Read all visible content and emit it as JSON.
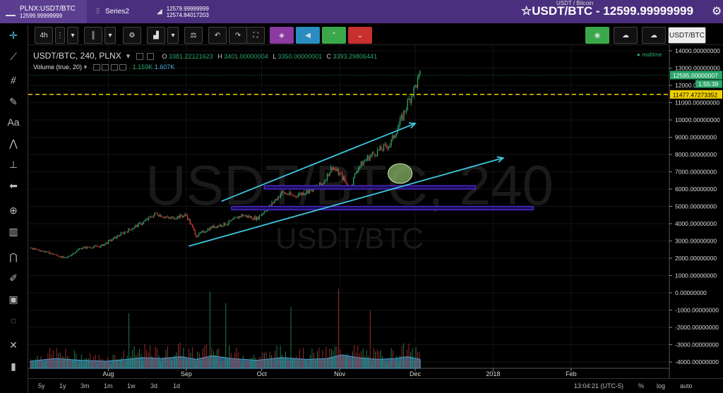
{
  "tabs": [
    {
      "label": "PLNX:USDT/BTC",
      "sub": "12599.99999999"
    },
    {
      "label": "Series2",
      "sub": ""
    },
    {
      "label": "12579.99999999",
      "sub": "12574.84017203"
    }
  ],
  "header": {
    "subtitle": "USDT / Bitcoin",
    "title": "USDT/BTC - 12599.99999999"
  },
  "toolbar": {
    "interval": "4h",
    "symbol_box": "USDT/BTC"
  },
  "legend": {
    "symbol": "USDT/BTC, 240, PLNX",
    "o_label": "O",
    "o_value": "3381.22121623",
    "h_label": "H",
    "h_value": "3401.00000004",
    "l_label": "L",
    "l_value": "3350.00000001",
    "c_label": "C",
    "c_value": "3393.29806441",
    "volume_label": "Volume (true, 20)",
    "vol1": "1.159K",
    "vol2": "1.607K",
    "realtime": "realtime"
  },
  "watermark": {
    "main": "USDT/BTC, 240",
    "sub": "USDT/BTC"
  },
  "price_tags": {
    "last_price": "12595.00000007",
    "countdown": "1:55:39",
    "hline_price": "11477.47273352"
  },
  "colors": {
    "up": "#2ca66b",
    "down": "#d23a3a",
    "trend": "#3ec6e0",
    "zone": "#5a2bd6",
    "hline": "#f0d000",
    "volume": "#4aa8e0",
    "ellipse": "#8fbf6a",
    "header": "#4a2f7e"
  },
  "bottom": {
    "ranges": [
      "5y",
      "1y",
      "3m",
      "1m",
      "1w",
      "3d",
      "1d"
    ],
    "time": "13:04:21 (UTC-5)",
    "pct": "%",
    "log": "log",
    "auto": "auto"
  },
  "chart_data": {
    "type": "line",
    "y_ticks": [
      14000,
      13000,
      12000,
      11000,
      10000,
      9000,
      8000,
      7000,
      6000,
      5000,
      4000,
      3000,
      2000,
      1000,
      0,
      -1000,
      -2000,
      -3000,
      -4000
    ],
    "y_tick_labels": [
      "14000.00000000",
      "13000.00000000",
      "12000.00000000",
      "11000.00000000",
      "10000.00000000",
      "9000.00000000",
      "8000.00000000",
      "7000.00000000",
      "6000.00000000",
      "5000.00000000",
      "4000.00000000",
      "3000.00000000",
      "2000.00000000",
      "1000.00000000",
      "0.00000000",
      "-1000.00000000",
      "-2000.00000000",
      "-3000.00000000",
      "-4000.00000000"
    ],
    "ylim": [
      -4300,
      14300
    ],
    "x_tick_labels": [
      "Aug",
      "Sep",
      "Oct",
      "Nov",
      "Dec",
      "2018",
      "Feb"
    ],
    "x_tick_days": [
      31,
      62,
      92,
      123,
      153,
      184,
      215
    ],
    "xlim": [
      0,
      240
    ],
    "price_series": {
      "days": [
        0,
        8,
        14,
        20,
        28,
        36,
        45,
        50,
        55,
        62,
        66,
        72,
        78,
        84,
        90,
        95,
        100,
        105,
        112,
        116,
        120,
        124,
        127,
        130,
        134,
        138,
        143,
        148,
        150,
        152,
        155
      ],
      "values": [
        2600,
        2300,
        2000,
        2600,
        2700,
        3400,
        4100,
        4600,
        4300,
        4500,
        3300,
        3800,
        4000,
        4500,
        4300,
        5000,
        5800,
        5600,
        6000,
        6300,
        7300,
        6700,
        6000,
        7200,
        7800,
        8200,
        8600,
        10200,
        11000,
        11600,
        12595
      ]
    },
    "volume_series": {
      "days": [
        0,
        10,
        20,
        30,
        38,
        45,
        52,
        60,
        66,
        72,
        80,
        90,
        100,
        110,
        118,
        124,
        130,
        138,
        145,
        150,
        155
      ],
      "values": [
        0.3,
        0.45,
        0.35,
        0.3,
        0.4,
        0.5,
        0.45,
        0.55,
        0.4,
        0.6,
        0.45,
        0.35,
        0.5,
        0.4,
        0.45,
        0.65,
        0.5,
        0.4,
        0.45,
        0.55,
        0.4
      ]
    },
    "trend_lines": [
      {
        "from": [
          63,
          2700
        ],
        "to": [
          188,
          7800
        ]
      },
      {
        "from": [
          76,
          5300
        ],
        "to": [
          153,
          9800
        ]
      }
    ],
    "zones": [
      {
        "from_day": 93,
        "to_day": 177,
        "value": 6100
      },
      {
        "from_day": 80,
        "to_day": 200,
        "value": 4900
      }
    ],
    "hline": 11477.47,
    "ellipse": {
      "day": 147,
      "value": 6900
    }
  }
}
